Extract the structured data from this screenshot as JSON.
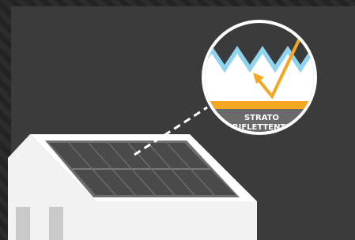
{
  "callout": {
    "lines": [
      "STRATO",
      "RIFLETTENTE"
    ]
  }
}
